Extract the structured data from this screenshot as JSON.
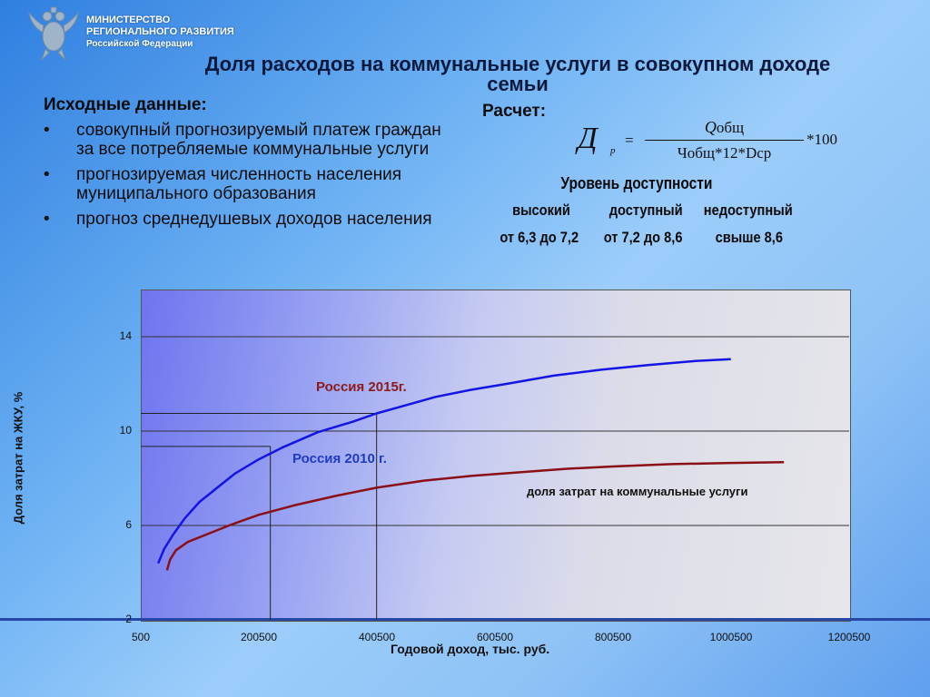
{
  "header": {
    "ministry_lines": [
      "МИНИСТЕРСТВО",
      "РЕГИОНАЛЬНОГО РАЗВИТИЯ",
      "Российской Федерации"
    ],
    "emblem_icon": "double-headed-eagle-emblem-icon"
  },
  "title": {
    "line1": "Доля расходов на коммунальные услуги в совокупном доходе",
    "line2": "семьи"
  },
  "input_data": {
    "heading": "Исходные данные:",
    "bullet_symbol": "•",
    "items": [
      "совокупный прогнозируемый платеж граждан за все потребляемые коммунальные услуги",
      "прогнозируемая численность населения муниципального образования",
      "прогноз среднедушевых доходов населения"
    ]
  },
  "calculation": {
    "label": "Расчет:",
    "formula": {
      "lhs": "Д",
      "lhs_sub": "р",
      "equals": "=",
      "numerator_q": "Q",
      "numerator_rest": "общ",
      "denominator": "Чобщ*12*Dср",
      "multiplier": "*100"
    }
  },
  "affordability": {
    "heading": "Уровень доступности",
    "levels": [
      {
        "name": "высокий",
        "range": "от 6,3 до 7,2"
      },
      {
        "name": "доступный",
        "range": "от 7,2 до 8,6"
      },
      {
        "name": "недоступный",
        "range": "свыше 8,6"
      }
    ]
  },
  "colors": {
    "series_2015": "#1414e6",
    "series_2010": "#8b0f16",
    "label_2015": "#8b1a1a",
    "label_2010": "#1f3bbf"
  },
  "chart_data": {
    "type": "line",
    "xlabel": "Годовой доход, тыс. руб.",
    "ylabel": "Доля затрат на ЖКУ, %",
    "xlim": [
      500,
      1200500
    ],
    "ylim": [
      2,
      14
    ],
    "x_ticks": [
      "500",
      "200500",
      "400500",
      "600500",
      "800500",
      "1000500",
      "1200500"
    ],
    "y_ticks": [
      "2",
      "6",
      "10",
      "14"
    ],
    "y_tick_values": [
      2,
      6,
      10,
      14
    ],
    "grid": "horizontal",
    "series": [
      {
        "name": "Россия 2015г.",
        "x": [
          30000,
          40000,
          55000,
          75000,
          100000,
          130000,
          160000,
          200000,
          240000,
          300000,
          360000,
          400000,
          450000,
          500000,
          560000,
          620000,
          700000,
          780000,
          860000,
          940000,
          1000000
        ],
        "y": [
          4.4,
          5.0,
          5.6,
          6.3,
          7.0,
          7.6,
          8.2,
          8.8,
          9.3,
          9.95,
          10.4,
          10.75,
          11.1,
          11.45,
          11.75,
          12.0,
          12.35,
          12.6,
          12.8,
          12.97,
          13.05
        ]
      },
      {
        "name": "Россия 2010 г.",
        "x": [
          45000,
          50000,
          60000,
          80000,
          110000,
          150000,
          200000,
          260000,
          330000,
          400000,
          480000,
          560000,
          640000,
          720000,
          800000,
          900000,
          1000000,
          1090000
        ],
        "y": [
          4.1,
          4.55,
          4.95,
          5.3,
          5.6,
          6.0,
          6.45,
          6.85,
          7.25,
          7.6,
          7.9,
          8.1,
          8.25,
          8.4,
          8.5,
          8.6,
          8.65,
          8.68
        ]
      }
    ],
    "reference_lines": [
      {
        "x": 220000,
        "y": 9.35
      },
      {
        "x": 400000,
        "y": 10.75
      }
    ],
    "annotations": {
      "label_2015": "Россия 2015г.",
      "label_2010": "Россия 2010 г.",
      "series_caption": "доля затрат на коммунальные услуги"
    }
  }
}
